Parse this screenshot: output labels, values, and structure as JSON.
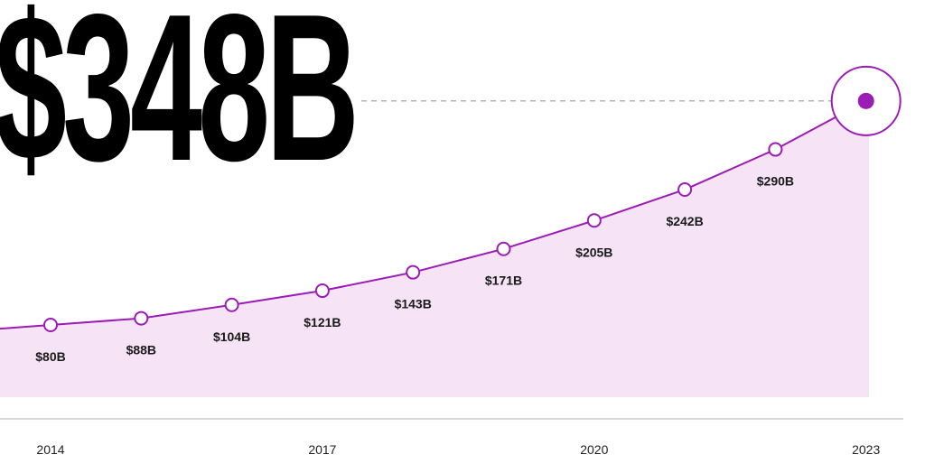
{
  "headline": "$348B",
  "chart_data": {
    "type": "area",
    "x": [
      2013,
      2014,
      2015,
      2016,
      2017,
      2018,
      2019,
      2020,
      2021,
      2022,
      2023
    ],
    "values": [
      72,
      80,
      88,
      104,
      121,
      143,
      171,
      205,
      242,
      290,
      348
    ],
    "data_labels": [
      "",
      "$80B",
      "$88B",
      "$104B",
      "$121B",
      "$143B",
      "$171B",
      "$205B",
      "$242B",
      "$290B",
      ""
    ],
    "x_tick_labels": [
      "2014",
      "2017",
      "2020",
      "2023"
    ],
    "x_ticks": [
      2014,
      2017,
      2020,
      2023
    ],
    "highlight": {
      "x": 2023,
      "value": 348
    },
    "grid": false,
    "colors": {
      "line": "#9b1bb5",
      "fill": "#f6e3f6",
      "marker_fill": "#ffffff",
      "highlight": "#9b1bb5",
      "axis": "#c8c8c8",
      "guide": "#9a9a9a"
    }
  }
}
